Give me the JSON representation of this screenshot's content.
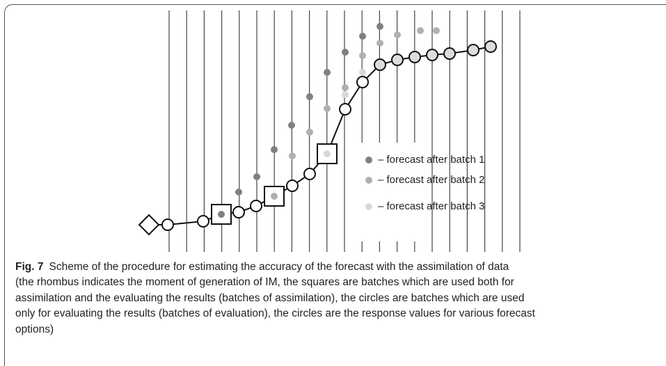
{
  "legend": [
    "– forecast after batch 1",
    "– forecast after batch 2",
    "– forecast after batch 3"
  ],
  "caption": {
    "label": "Fig. 7",
    "lines": [
      "Scheme of the procedure for estimating the accuracy of the forecast with the assimilation of data",
      "(the rhombus indicates the moment of generation of IM, the squares are batches which are used both for",
      "assimilation and the evaluating the results (batches of assimilation), the circles are batches which are used",
      "only for evaluating the results (batches of evaluation), the circles are the response values for various forecast",
      "options)"
    ]
  }
}
